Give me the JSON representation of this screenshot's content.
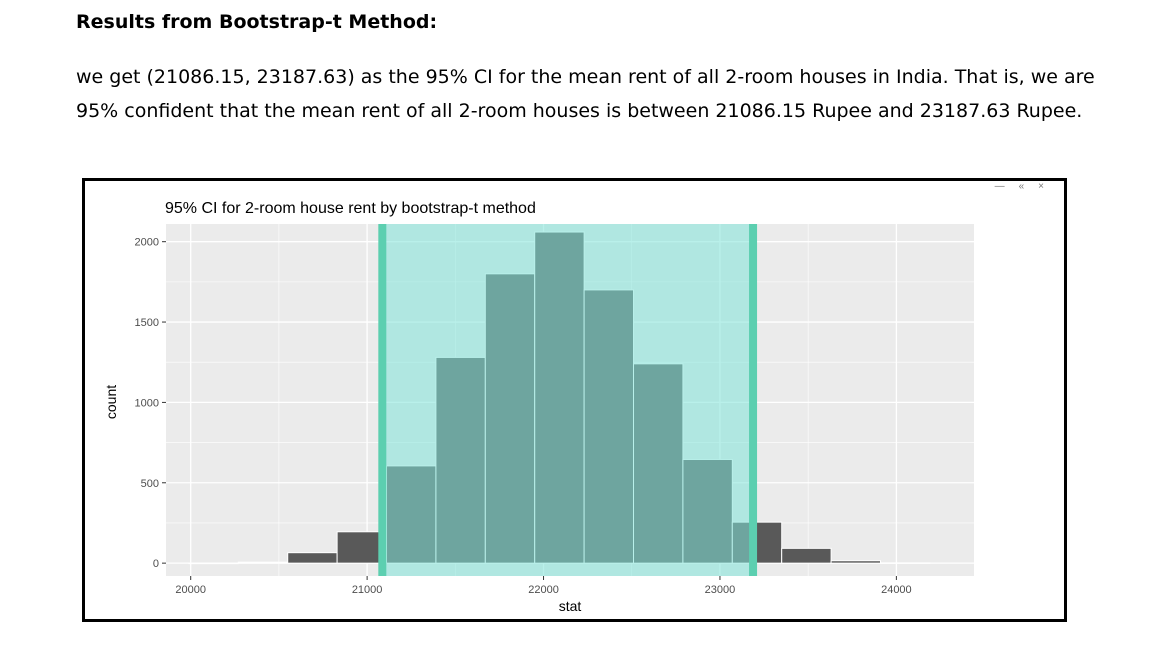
{
  "heading": "Results from Bootstrap-t Method:",
  "paragraph": "we get (21086.15, 23187.63) as the 95% CI for the mean rent of all 2-room houses in India. That is, we are 95% confident that the mean rent of all 2-room houses is between 21086.15 Rupee and 23187.63 Rupee.",
  "window_controls": [
    "—",
    "«",
    "×"
  ],
  "colors": {
    "panel_bg": "#ebebeb",
    "gridline": "#ffffff",
    "bar_fill": "#595959",
    "ci_shade": "#7fe3d9",
    "ci_line": "#5ccfb0",
    "bar_in_ci": "#4aa89d"
  },
  "chart_data": {
    "type": "bar",
    "title": "95% CI for 2-room house rent  by bootstrap-t method",
    "xlabel": "stat",
    "ylabel": "count",
    "xlim": [
      19860,
      24440
    ],
    "ylim": [
      -80,
      2110
    ],
    "x_ticks": [
      20000,
      21000,
      22000,
      23000,
      24000
    ],
    "y_ticks": [
      0,
      500,
      1000,
      1500,
      2000
    ],
    "grid": true,
    "ci": [
      21086.15,
      23187.63
    ],
    "bin_width": 280,
    "bins": [
      {
        "x0": 19990,
        "x1": 20270,
        "count": 0
      },
      {
        "x0": 20270,
        "x1": 20550,
        "count": 6
      },
      {
        "x0": 20550,
        "x1": 20830,
        "count": 65
      },
      {
        "x0": 20830,
        "x1": 21110,
        "count": 195
      },
      {
        "x0": 21110,
        "x1": 21390,
        "count": 605
      },
      {
        "x0": 21390,
        "x1": 21670,
        "count": 1280
      },
      {
        "x0": 21670,
        "x1": 21950,
        "count": 1800
      },
      {
        "x0": 21950,
        "x1": 22230,
        "count": 2060
      },
      {
        "x0": 22230,
        "x1": 22510,
        "count": 1700
      },
      {
        "x0": 22510,
        "x1": 22790,
        "count": 1240
      },
      {
        "x0": 22790,
        "x1": 23070,
        "count": 645
      },
      {
        "x0": 23070,
        "x1": 23350,
        "count": 255
      },
      {
        "x0": 23350,
        "x1": 23630,
        "count": 92
      },
      {
        "x0": 23630,
        "x1": 23910,
        "count": 15
      },
      {
        "x0": 23910,
        "x1": 24190,
        "count": 2
      }
    ]
  }
}
